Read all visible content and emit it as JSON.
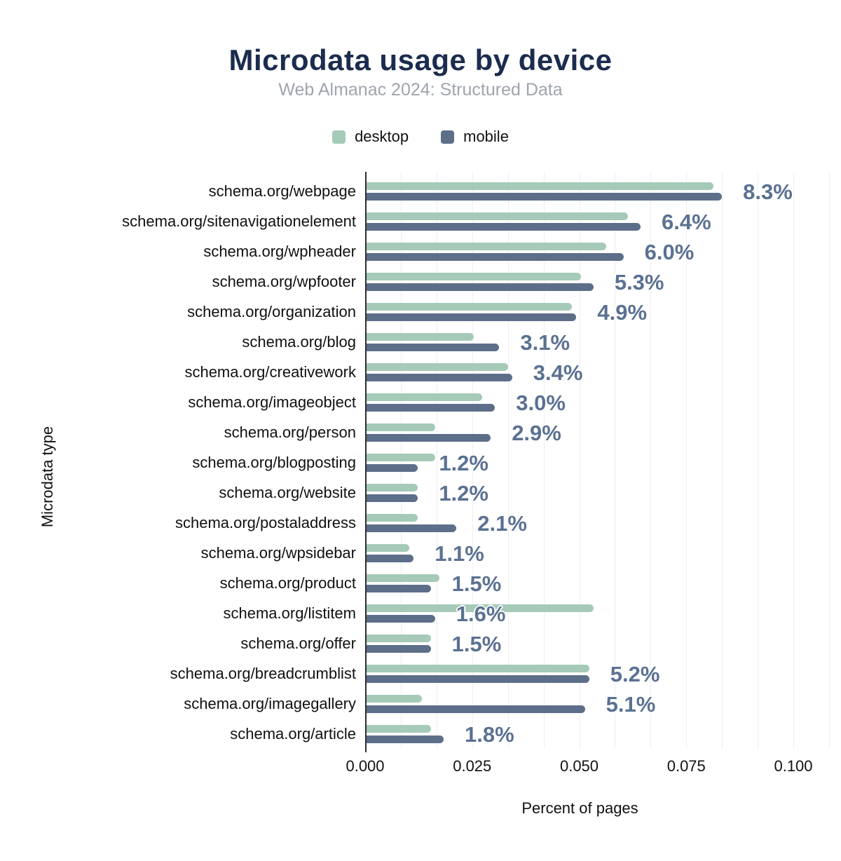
{
  "title": "Microdata usage by device",
  "subtitle": "Web Almanac 2024: Structured Data",
  "xlabel": "Percent of pages",
  "ylabel": "Microdata type",
  "legend": [
    {
      "label": "desktop",
      "color": "#a5cab8"
    },
    {
      "label": "mobile",
      "color": "#5d6e89"
    }
  ],
  "colors": {
    "desktop": "#a5cab8",
    "mobile": "#5d6e89",
    "value_label": "#5b7192",
    "title": "#1b2c4e",
    "subtitle": "#9fa5ad",
    "grid": "#efeff3",
    "axis": "#2f2f2f"
  },
  "chart_data": {
    "type": "bar",
    "orientation": "horizontal",
    "title": "Microdata usage by device",
    "subtitle": "Web Almanac 2024: Structured Data",
    "xlabel": "Percent of pages",
    "ylabel": "Microdata type",
    "legend_position": "top",
    "grid": "minor-vertical",
    "xlim": [
      0,
      0.108
    ],
    "xticks": [
      {
        "value": 0.0,
        "label": "0.000"
      },
      {
        "value": 0.025,
        "label": "0.025"
      },
      {
        "value": 0.05,
        "label": "0.050"
      },
      {
        "value": 0.075,
        "label": "0.075"
      },
      {
        "value": 0.1,
        "label": "0.100"
      }
    ],
    "categories": [
      "schema.org/webpage",
      "schema.org/sitenavigationelement",
      "schema.org/wpheader",
      "schema.org/wpfooter",
      "schema.org/organization",
      "schema.org/blog",
      "schema.org/creativework",
      "schema.org/imageobject",
      "schema.org/person",
      "schema.org/blogposting",
      "schema.org/website",
      "schema.org/postaladdress",
      "schema.org/wpsidebar",
      "schema.org/product",
      "schema.org/listitem",
      "schema.org/offer",
      "schema.org/breadcrumblist",
      "schema.org/imagegallery",
      "schema.org/article"
    ],
    "series": [
      {
        "name": "desktop",
        "values": [
          0.081,
          0.061,
          0.056,
          0.05,
          0.048,
          0.025,
          0.033,
          0.027,
          0.016,
          0.016,
          0.012,
          0.012,
          0.01,
          0.017,
          0.053,
          0.015,
          0.052,
          0.013,
          0.015
        ]
      },
      {
        "name": "mobile",
        "values": [
          0.083,
          0.064,
          0.06,
          0.053,
          0.049,
          0.031,
          0.034,
          0.03,
          0.029,
          0.012,
          0.012,
          0.021,
          0.011,
          0.015,
          0.016,
          0.015,
          0.052,
          0.051,
          0.018
        ]
      }
    ],
    "bar_labels": [
      "8.3%",
      "6.4%",
      "6.0%",
      "5.3%",
      "4.9%",
      "3.1%",
      "3.4%",
      "3.0%",
      "2.9%",
      "1.2%",
      "1.2%",
      "2.1%",
      "1.1%",
      "1.5%",
      "1.6%",
      "1.5%",
      "5.2%",
      "5.1%",
      "1.8%"
    ]
  }
}
